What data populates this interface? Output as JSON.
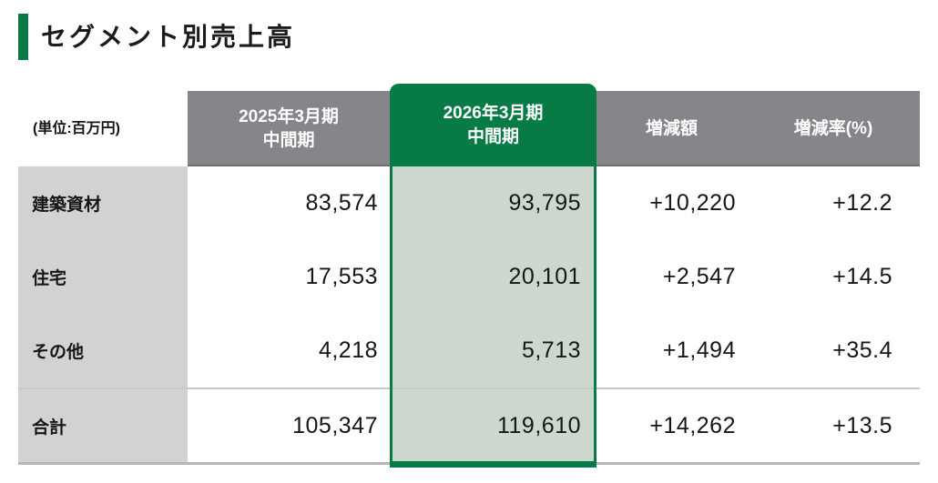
{
  "page": {
    "title": "セグメント別売上高",
    "unit_label": "(単位:百万円)"
  },
  "table": {
    "header": {
      "col_prev": {
        "line1": "2025年3月期",
        "line2": "中間期"
      },
      "col_current": {
        "line1": "2026年3月期",
        "line2": "中間期"
      },
      "col_change": "増減額",
      "col_change_rate": "増減率(%)"
    },
    "rows": [
      {
        "label": "建築資材",
        "prev": "83,574",
        "current": "93,795",
        "change": "+10,220",
        "change_rate": "+12.2"
      },
      {
        "label": "住宅",
        "prev": "17,553",
        "current": "20,101",
        "change": "+2,547",
        "change_rate": "+14.5"
      },
      {
        "label": "その他",
        "prev": "4,218",
        "current": "5,713",
        "change": "+1,494",
        "change_rate": "+35.4"
      },
      {
        "label": "合計",
        "prev": "105,347",
        "current": "119,610",
        "change": "+14,262",
        "change_rate": "+13.5"
      }
    ]
  },
  "colors": {
    "accent_green": "#087a46",
    "highlight_fill": "#ccd8cd",
    "header_gray": "#85868a",
    "label_gray": "#d2d2d3"
  },
  "chart_data": {
    "type": "table",
    "title": "セグメント別売上高",
    "unit": "百万円",
    "columns": [
      "2025年3月期 中間期",
      "2026年3月期 中間期",
      "増減額",
      "増減率(%)"
    ],
    "highlighted_column": "2026年3月期 中間期",
    "rows": [
      {
        "label": "建築資材",
        "prev": 83574,
        "current": 93795,
        "change": 10220,
        "change_rate_pct": 12.2
      },
      {
        "label": "住宅",
        "prev": 17553,
        "current": 20101,
        "change": 2547,
        "change_rate_pct": 14.5
      },
      {
        "label": "その他",
        "prev": 4218,
        "current": 5713,
        "change": 1494,
        "change_rate_pct": 35.4
      },
      {
        "label": "合計",
        "prev": 105347,
        "current": 119610,
        "change": 14262,
        "change_rate_pct": 13.5
      }
    ]
  }
}
